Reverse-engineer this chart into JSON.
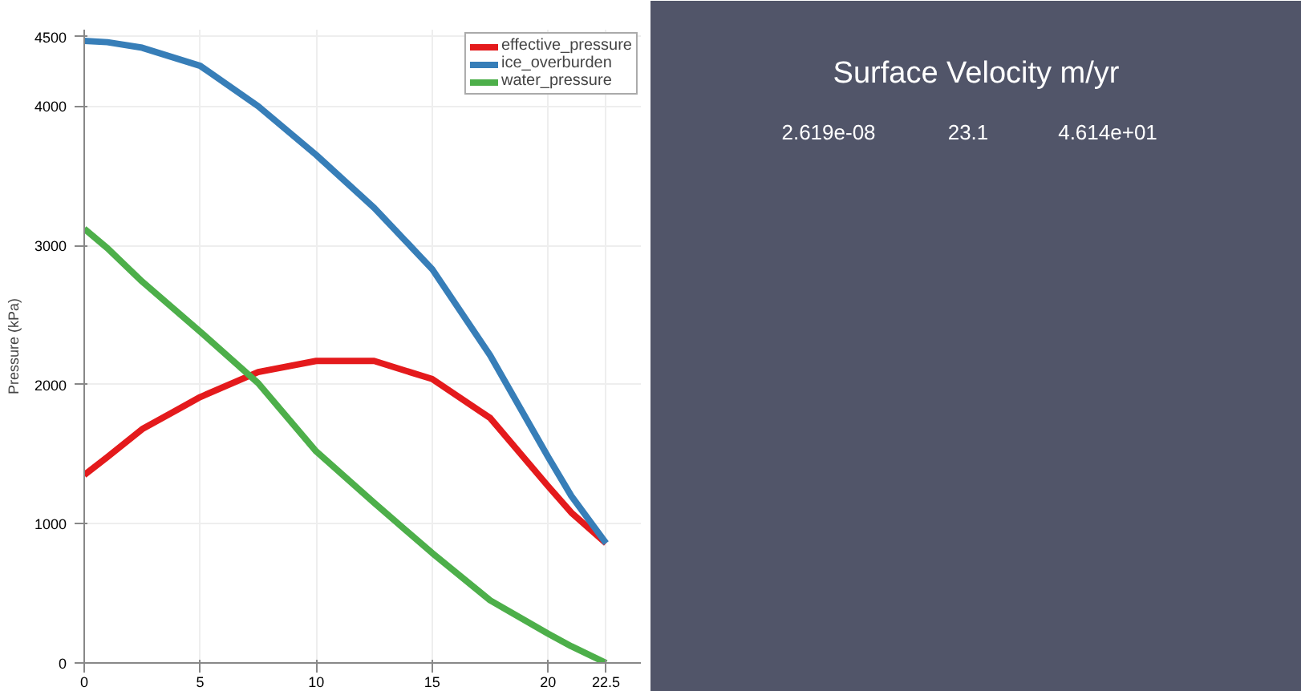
{
  "chart_data": [
    {
      "type": "line",
      "ylabel": "Pressure (kPa)",
      "x": [
        0,
        1,
        2.5,
        5,
        7.5,
        10,
        12.5,
        15,
        17.5,
        20,
        21,
        22.5
      ],
      "series": [
        {
          "name": "effective_pressure",
          "color": "#e41a1c",
          "values": [
            1350,
            1480,
            1680,
            1910,
            2090,
            2170,
            2170,
            2040,
            1760,
            1270,
            1080,
            860
          ]
        },
        {
          "name": "ice_overburden",
          "color": "#377eb8",
          "values": [
            4470,
            4460,
            4420,
            4290,
            4000,
            3650,
            3270,
            2830,
            2210,
            1480,
            1200,
            860
          ]
        },
        {
          "name": "water_pressure",
          "color": "#4daf4a",
          "values": [
            3120,
            2980,
            2740,
            2380,
            2010,
            1520,
            1150,
            790,
            450,
            210,
            120,
            0
          ]
        }
      ],
      "xlim": [
        0,
        24
      ],
      "ylim": [
        0,
        4550
      ],
      "xticks": [
        0,
        5,
        10,
        15,
        20,
        22.5
      ],
      "yticks": [
        0,
        1000,
        2000,
        3000,
        4000,
        4500
      ],
      "grid": true,
      "legend": "top right",
      "line_style": "solid",
      "marker": "none"
    },
    {
      "type": "other",
      "title": "Surface Velocity m/yr",
      "annotations": [
        "2.619e-08",
        "23.1",
        "4.614e+01"
      ]
    }
  ]
}
